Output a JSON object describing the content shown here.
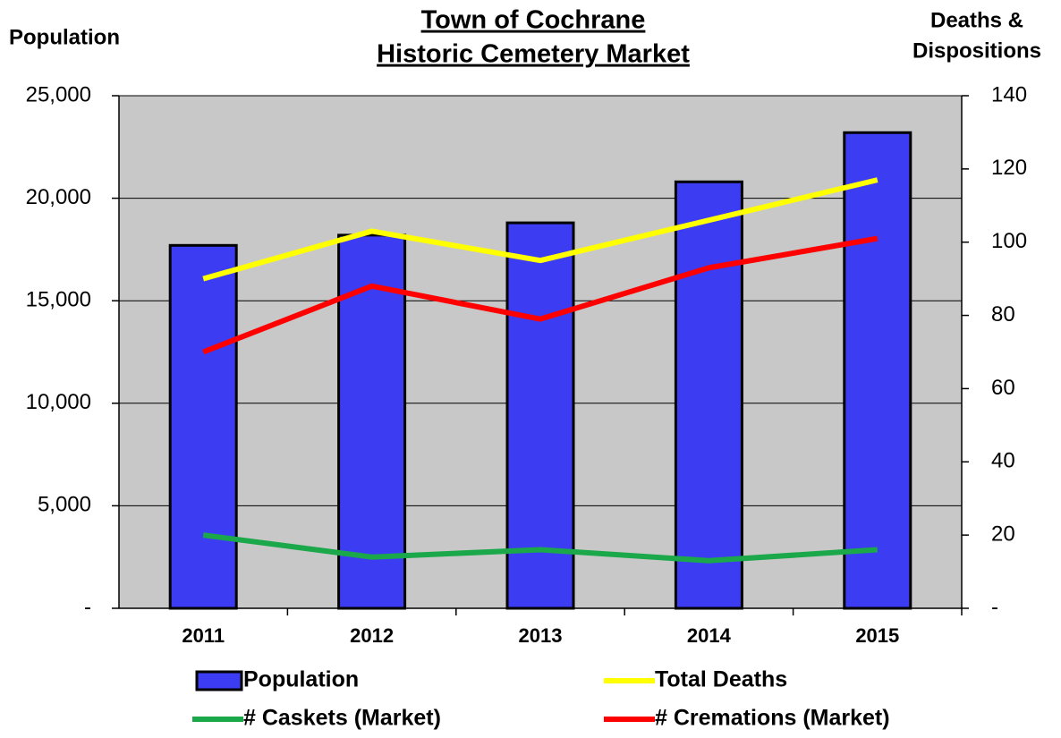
{
  "chart_data": {
    "type": "bar_line",
    "title": [
      "Town of Cochrane",
      "Historic Cemetery Market"
    ],
    "ylabel": "Population",
    "y2label": [
      "Deaths &",
      "Dispositions"
    ],
    "categories": [
      "2011",
      "2012",
      "2013",
      "2014",
      "2015"
    ],
    "series": [
      {
        "name": "Population",
        "type": "bar",
        "color": "#3c3cf2",
        "values": [
          17700,
          18200,
          18800,
          20800,
          23200
        ]
      },
      {
        "name": "Total Deaths",
        "type": "line",
        "axis": "y2",
        "color": "#ffff00",
        "values": [
          90,
          103,
          95,
          106,
          117
        ]
      },
      {
        "name": "# Caskets (Market)",
        "type": "line",
        "axis": "y2",
        "color": "#1aa84a",
        "values": [
          20,
          14,
          16,
          13,
          16
        ]
      },
      {
        "name": "# Cremations (Market)",
        "type": "line",
        "axis": "y2",
        "color": "#ff0000",
        "values": [
          70,
          88,
          79,
          93,
          101
        ]
      }
    ],
    "ylim": [
      0,
      25000
    ],
    "yticks": [
      {
        "value": 0,
        "label": "-"
      },
      {
        "value": 5000,
        "label": "5,000"
      },
      {
        "value": 10000,
        "label": "10,000"
      },
      {
        "value": 15000,
        "label": "15,000"
      },
      {
        "value": 20000,
        "label": "20,000"
      },
      {
        "value": 25000,
        "label": "25,000"
      }
    ],
    "y2lim": [
      0,
      140
    ],
    "y2ticks": [
      {
        "value": 0,
        "label": "-"
      },
      20,
      40,
      60,
      80,
      100,
      120,
      140
    ],
    "grid": true
  }
}
